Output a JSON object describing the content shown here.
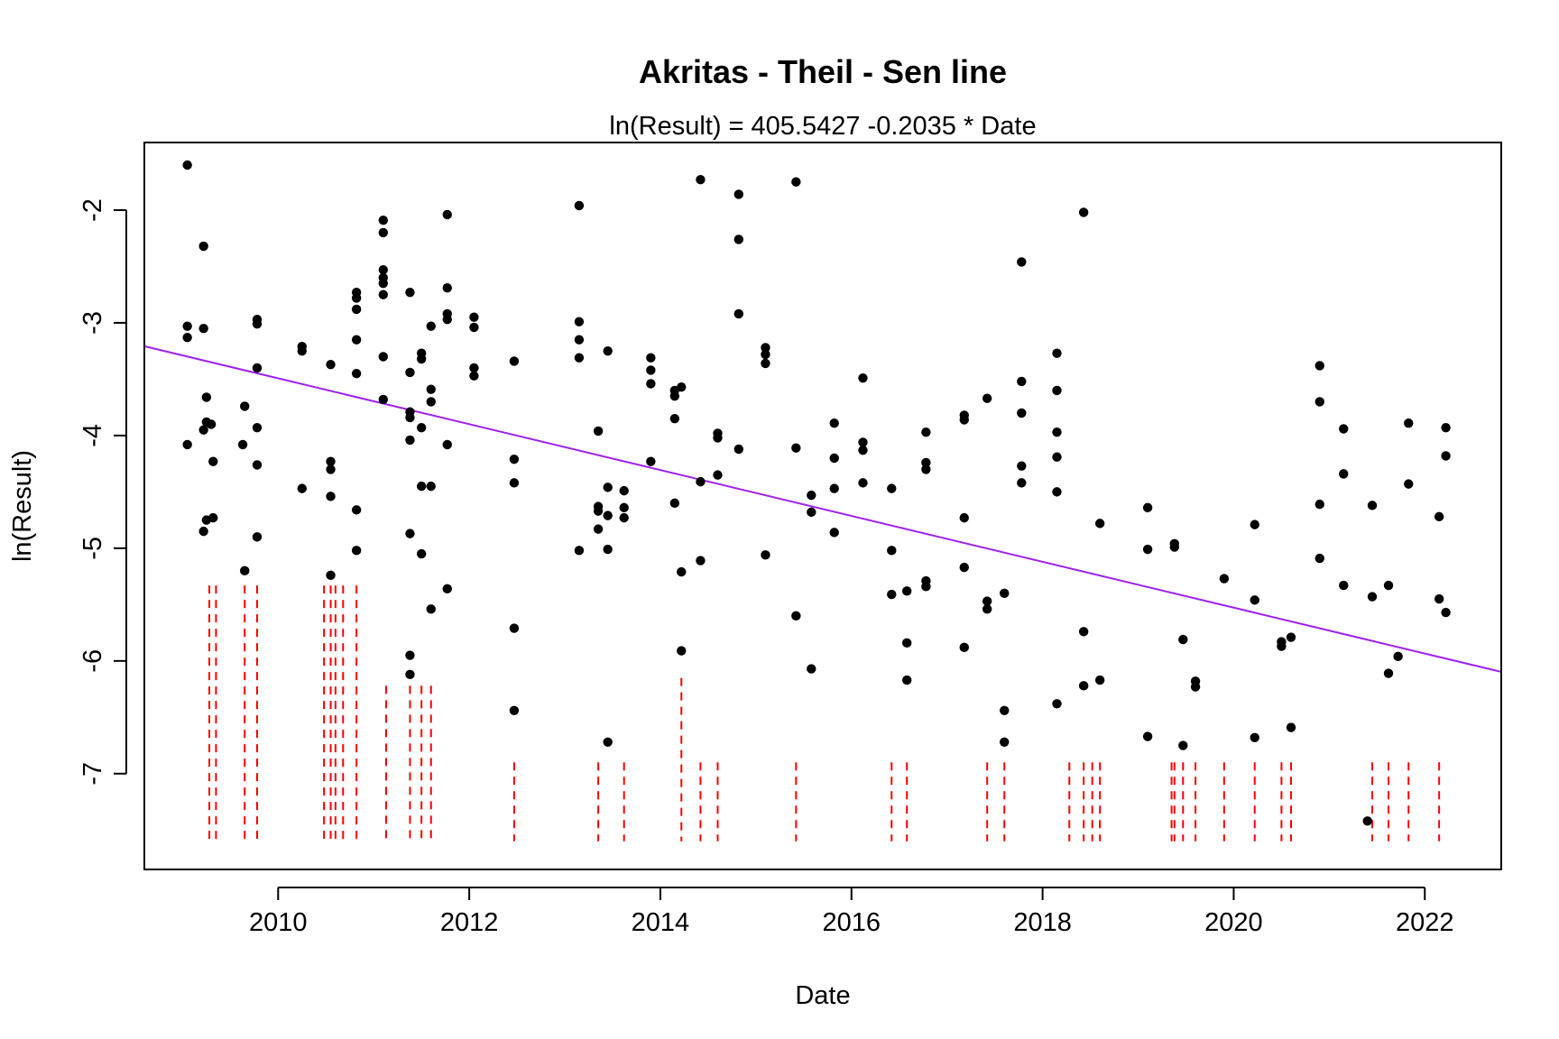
{
  "chart_data": {
    "type": "scatter",
    "title": "Akritas - Theil - Sen line",
    "subtitle": "ln(Result) = 405.5427 -0.2035 * Date",
    "xlabel": "Date",
    "ylabel": "ln(Result)",
    "xlim": [
      2008.6,
      2022.8
    ],
    "ylim": [
      -7.85,
      -1.4
    ],
    "x_ticks": [
      2010,
      2012,
      2014,
      2016,
      2018,
      2020,
      2022
    ],
    "y_ticks": [
      -2,
      -3,
      -4,
      -5,
      -6,
      -7
    ],
    "grid": false,
    "legend": "none",
    "trend_line": {
      "intercept": 405.5427,
      "slope": -0.2035,
      "color": "#a020f0"
    },
    "point_color": "#000000",
    "censored_color": "#ff0000",
    "series": [
      {
        "values": [
          {
            "x": 2009.05,
            "y": -1.6
          },
          {
            "x": 2009.05,
            "y": -3.03
          },
          {
            "x": 2009.05,
            "y": -3.13
          },
          {
            "x": 2009.05,
            "y": -4.08
          },
          {
            "x": 2009.22,
            "y": -2.32
          },
          {
            "x": 2009.22,
            "y": -3.05
          },
          {
            "x": 2009.25,
            "y": -3.66
          },
          {
            "x": 2009.22,
            "y": -3.95
          },
          {
            "x": 2009.25,
            "y": -3.88
          },
          {
            "x": 2009.3,
            "y": -3.9
          },
          {
            "x": 2009.32,
            "y": -4.23
          },
          {
            "x": 2009.22,
            "y": -4.85
          },
          {
            "x": 2009.25,
            "y": -4.75
          },
          {
            "x": 2009.32,
            "y": -4.73
          },
          {
            "x": 2009.65,
            "y": -3.74
          },
          {
            "x": 2009.63,
            "y": -4.08
          },
          {
            "x": 2009.65,
            "y": -5.2
          },
          {
            "x": 2009.78,
            "y": -2.97
          },
          {
            "x": 2009.78,
            "y": -3.01
          },
          {
            "x": 2009.78,
            "y": -3.4
          },
          {
            "x": 2009.78,
            "y": -3.93
          },
          {
            "x": 2009.78,
            "y": -4.26
          },
          {
            "x": 2009.78,
            "y": -4.9
          },
          {
            "x": 2010.25,
            "y": -3.21
          },
          {
            "x": 2010.25,
            "y": -3.25
          },
          {
            "x": 2010.25,
            "y": -4.47
          },
          {
            "x": 2010.55,
            "y": -3.37
          },
          {
            "x": 2010.55,
            "y": -4.23
          },
          {
            "x": 2010.55,
            "y": -4.3
          },
          {
            "x": 2010.55,
            "y": -4.54
          },
          {
            "x": 2010.55,
            "y": -5.24
          },
          {
            "x": 2010.82,
            "y": -2.73
          },
          {
            "x": 2010.82,
            "y": -2.78
          },
          {
            "x": 2010.82,
            "y": -2.88
          },
          {
            "x": 2010.82,
            "y": -3.15
          },
          {
            "x": 2010.82,
            "y": -3.45
          },
          {
            "x": 2010.82,
            "y": -4.66
          },
          {
            "x": 2010.82,
            "y": -5.02
          },
          {
            "x": 2011.1,
            "y": -2.09
          },
          {
            "x": 2011.1,
            "y": -2.2
          },
          {
            "x": 2011.1,
            "y": -2.53
          },
          {
            "x": 2011.1,
            "y": -2.6
          },
          {
            "x": 2011.1,
            "y": -2.65
          },
          {
            "x": 2011.1,
            "y": -2.75
          },
          {
            "x": 2011.1,
            "y": -3.3
          },
          {
            "x": 2011.1,
            "y": -3.68
          },
          {
            "x": 2011.38,
            "y": -2.73
          },
          {
            "x": 2011.38,
            "y": -3.44
          },
          {
            "x": 2011.38,
            "y": -3.79
          },
          {
            "x": 2011.38,
            "y": -3.84
          },
          {
            "x": 2011.38,
            "y": -4.04
          },
          {
            "x": 2011.38,
            "y": -4.87
          },
          {
            "x": 2011.38,
            "y": -5.95
          },
          {
            "x": 2011.38,
            "y": -6.12
          },
          {
            "x": 2011.5,
            "y": -3.27
          },
          {
            "x": 2011.5,
            "y": -3.32
          },
          {
            "x": 2011.5,
            "y": -3.93
          },
          {
            "x": 2011.5,
            "y": -4.45
          },
          {
            "x": 2011.5,
            "y": -5.05
          },
          {
            "x": 2011.6,
            "y": -3.03
          },
          {
            "x": 2011.6,
            "y": -3.59
          },
          {
            "x": 2011.6,
            "y": -3.7
          },
          {
            "x": 2011.6,
            "y": -4.45
          },
          {
            "x": 2011.6,
            "y": -5.54
          },
          {
            "x": 2011.77,
            "y": -2.04
          },
          {
            "x": 2011.77,
            "y": -2.69
          },
          {
            "x": 2011.77,
            "y": -2.92
          },
          {
            "x": 2011.77,
            "y": -2.97
          },
          {
            "x": 2011.77,
            "y": -4.08
          },
          {
            "x": 2011.77,
            "y": -5.36
          },
          {
            "x": 2012.05,
            "y": -2.95
          },
          {
            "x": 2012.05,
            "y": -3.04
          },
          {
            "x": 2012.05,
            "y": -3.4
          },
          {
            "x": 2012.05,
            "y": -3.47
          },
          {
            "x": 2012.47,
            "y": -3.34
          },
          {
            "x": 2012.47,
            "y": -4.21
          },
          {
            "x": 2012.47,
            "y": -4.42
          },
          {
            "x": 2012.47,
            "y": -5.71
          },
          {
            "x": 2012.47,
            "y": -6.44
          },
          {
            "x": 2013.15,
            "y": -1.96
          },
          {
            "x": 2013.15,
            "y": -2.99
          },
          {
            "x": 2013.15,
            "y": -3.15
          },
          {
            "x": 2013.15,
            "y": -3.31
          },
          {
            "x": 2013.15,
            "y": -5.02
          },
          {
            "x": 2013.35,
            "y": -3.96
          },
          {
            "x": 2013.35,
            "y": -4.63
          },
          {
            "x": 2013.35,
            "y": -4.67
          },
          {
            "x": 2013.35,
            "y": -4.83
          },
          {
            "x": 2013.45,
            "y": -3.25
          },
          {
            "x": 2013.45,
            "y": -4.46
          },
          {
            "x": 2013.45,
            "y": -4.71
          },
          {
            "x": 2013.45,
            "y": -5.01
          },
          {
            "x": 2013.45,
            "y": -6.72
          },
          {
            "x": 2013.62,
            "y": -4.49
          },
          {
            "x": 2013.62,
            "y": -4.64
          },
          {
            "x": 2013.62,
            "y": -4.73
          },
          {
            "x": 2013.9,
            "y": -3.31
          },
          {
            "x": 2013.9,
            "y": -3.42
          },
          {
            "x": 2013.9,
            "y": -3.54
          },
          {
            "x": 2013.9,
            "y": -4.23
          },
          {
            "x": 2014.15,
            "y": -3.6
          },
          {
            "x": 2014.15,
            "y": -3.65
          },
          {
            "x": 2014.15,
            "y": -3.85
          },
          {
            "x": 2014.15,
            "y": -4.6
          },
          {
            "x": 2014.22,
            "y": -3.57
          },
          {
            "x": 2014.22,
            "y": -5.21
          },
          {
            "x": 2014.22,
            "y": -5.91
          },
          {
            "x": 2014.42,
            "y": -1.73
          },
          {
            "x": 2014.42,
            "y": -4.41
          },
          {
            "x": 2014.42,
            "y": -5.11
          },
          {
            "x": 2014.6,
            "y": -3.98
          },
          {
            "x": 2014.6,
            "y": -4.02
          },
          {
            "x": 2014.6,
            "y": -4.35
          },
          {
            "x": 2014.82,
            "y": -1.86
          },
          {
            "x": 2014.82,
            "y": -2.26
          },
          {
            "x": 2014.82,
            "y": -2.92
          },
          {
            "x": 2014.82,
            "y": -4.12
          },
          {
            "x": 2015.1,
            "y": -3.22
          },
          {
            "x": 2015.1,
            "y": -3.28
          },
          {
            "x": 2015.1,
            "y": -3.36
          },
          {
            "x": 2015.1,
            "y": -5.06
          },
          {
            "x": 2015.42,
            "y": -1.75
          },
          {
            "x": 2015.42,
            "y": -4.11
          },
          {
            "x": 2015.42,
            "y": -5.6
          },
          {
            "x": 2015.58,
            "y": -4.53
          },
          {
            "x": 2015.58,
            "y": -4.68
          },
          {
            "x": 2015.58,
            "y": -6.07
          },
          {
            "x": 2015.82,
            "y": -3.89
          },
          {
            "x": 2015.82,
            "y": -4.2
          },
          {
            "x": 2015.82,
            "y": -4.47
          },
          {
            "x": 2015.82,
            "y": -4.86
          },
          {
            "x": 2016.12,
            "y": -3.49
          },
          {
            "x": 2016.12,
            "y": -4.06
          },
          {
            "x": 2016.12,
            "y": -4.13
          },
          {
            "x": 2016.12,
            "y": -4.42
          },
          {
            "x": 2016.42,
            "y": -4.47
          },
          {
            "x": 2016.42,
            "y": -5.02
          },
          {
            "x": 2016.42,
            "y": -5.41
          },
          {
            "x": 2016.58,
            "y": -5.38
          },
          {
            "x": 2016.58,
            "y": -5.84
          },
          {
            "x": 2016.58,
            "y": -6.17
          },
          {
            "x": 2016.78,
            "y": -3.97
          },
          {
            "x": 2016.78,
            "y": -4.24
          },
          {
            "x": 2016.78,
            "y": -4.3
          },
          {
            "x": 2016.78,
            "y": -5.29
          },
          {
            "x": 2016.78,
            "y": -5.34
          },
          {
            "x": 2017.18,
            "y": -3.82
          },
          {
            "x": 2017.18,
            "y": -3.86
          },
          {
            "x": 2017.18,
            "y": -4.73
          },
          {
            "x": 2017.18,
            "y": -5.17
          },
          {
            "x": 2017.18,
            "y": -5.88
          },
          {
            "x": 2017.42,
            "y": -3.67
          },
          {
            "x": 2017.42,
            "y": -5.47
          },
          {
            "x": 2017.42,
            "y": -5.54
          },
          {
            "x": 2017.6,
            "y": -5.4
          },
          {
            "x": 2017.6,
            "y": -6.44
          },
          {
            "x": 2017.6,
            "y": -6.72
          },
          {
            "x": 2017.78,
            "y": -2.46
          },
          {
            "x": 2017.78,
            "y": -3.52
          },
          {
            "x": 2017.78,
            "y": -3.8
          },
          {
            "x": 2017.78,
            "y": -4.27
          },
          {
            "x": 2017.78,
            "y": -4.42
          },
          {
            "x": 2018.15,
            "y": -3.27
          },
          {
            "x": 2018.15,
            "y": -3.6
          },
          {
            "x": 2018.15,
            "y": -3.97
          },
          {
            "x": 2018.15,
            "y": -4.19
          },
          {
            "x": 2018.15,
            "y": -4.5
          },
          {
            "x": 2018.15,
            "y": -6.38
          },
          {
            "x": 2018.43,
            "y": -2.02
          },
          {
            "x": 2018.43,
            "y": -5.74
          },
          {
            "x": 2018.43,
            "y": -6.22
          },
          {
            "x": 2018.6,
            "y": -4.78
          },
          {
            "x": 2018.6,
            "y": -6.17
          },
          {
            "x": 2019.1,
            "y": -4.64
          },
          {
            "x": 2019.1,
            "y": -5.01
          },
          {
            "x": 2019.1,
            "y": -6.67
          },
          {
            "x": 2019.38,
            "y": -4.96
          },
          {
            "x": 2019.38,
            "y": -4.99
          },
          {
            "x": 2019.47,
            "y": -5.81
          },
          {
            "x": 2019.47,
            "y": -6.75
          },
          {
            "x": 2019.6,
            "y": -6.18
          },
          {
            "x": 2019.6,
            "y": -6.23
          },
          {
            "x": 2019.9,
            "y": -5.27
          },
          {
            "x": 2020.22,
            "y": -4.79
          },
          {
            "x": 2020.22,
            "y": -5.46
          },
          {
            "x": 2020.22,
            "y": -6.68
          },
          {
            "x": 2020.5,
            "y": -5.83
          },
          {
            "x": 2020.5,
            "y": -5.87
          },
          {
            "x": 2020.6,
            "y": -5.79
          },
          {
            "x": 2020.6,
            "y": -6.59
          },
          {
            "x": 2020.9,
            "y": -3.38
          },
          {
            "x": 2020.9,
            "y": -3.7
          },
          {
            "x": 2020.9,
            "y": -4.61
          },
          {
            "x": 2020.9,
            "y": -5.09
          },
          {
            "x": 2021.15,
            "y": -3.94
          },
          {
            "x": 2021.15,
            "y": -4.34
          },
          {
            "x": 2021.15,
            "y": -5.33
          },
          {
            "x": 2021.4,
            "y": -7.42
          },
          {
            "x": 2021.45,
            "y": -4.62
          },
          {
            "x": 2021.45,
            "y": -5.43
          },
          {
            "x": 2021.62,
            "y": -5.33
          },
          {
            "x": 2021.62,
            "y": -6.11
          },
          {
            "x": 2021.72,
            "y": -5.96
          },
          {
            "x": 2021.83,
            "y": -3.89
          },
          {
            "x": 2021.83,
            "y": -4.43
          },
          {
            "x": 2022.15,
            "y": -4.72
          },
          {
            "x": 2022.15,
            "y": -5.45
          },
          {
            "x": 2022.22,
            "y": -3.93
          },
          {
            "x": 2022.22,
            "y": -4.18
          },
          {
            "x": 2022.22,
            "y": -5.57
          }
        ]
      }
    ],
    "censored_segments": [
      {
        "x": 2009.28,
        "y_top": -5.33,
        "y_bottom": -7.6
      },
      {
        "x": 2009.35,
        "y_top": -5.33,
        "y_bottom": -7.6
      },
      {
        "x": 2009.65,
        "y_top": -5.33,
        "y_bottom": -7.6
      },
      {
        "x": 2009.78,
        "y_top": -5.33,
        "y_bottom": -7.6
      },
      {
        "x": 2010.48,
        "y_top": -5.33,
        "y_bottom": -7.6
      },
      {
        "x": 2010.55,
        "y_top": -5.33,
        "y_bottom": -7.6
      },
      {
        "x": 2010.6,
        "y_top": -5.33,
        "y_bottom": -7.6
      },
      {
        "x": 2010.68,
        "y_top": -5.33,
        "y_bottom": -7.6
      },
      {
        "x": 2010.82,
        "y_top": -5.33,
        "y_bottom": -7.6
      },
      {
        "x": 2011.13,
        "y_top": -6.22,
        "y_bottom": -7.6
      },
      {
        "x": 2011.38,
        "y_top": -6.22,
        "y_bottom": -7.6
      },
      {
        "x": 2011.5,
        "y_top": -6.22,
        "y_bottom": -7.6
      },
      {
        "x": 2011.6,
        "y_top": -6.22,
        "y_bottom": -7.6
      },
      {
        "x": 2012.47,
        "y_top": -6.9,
        "y_bottom": -7.6
      },
      {
        "x": 2013.35,
        "y_top": -6.9,
        "y_bottom": -7.6
      },
      {
        "x": 2013.62,
        "y_top": -6.9,
        "y_bottom": -7.6
      },
      {
        "x": 2014.22,
        "y_top": -6.15,
        "y_bottom": -7.6
      },
      {
        "x": 2014.42,
        "y_top": -6.9,
        "y_bottom": -7.6
      },
      {
        "x": 2014.6,
        "y_top": -6.9,
        "y_bottom": -7.6
      },
      {
        "x": 2015.42,
        "y_top": -6.9,
        "y_bottom": -7.6
      },
      {
        "x": 2016.42,
        "y_top": -6.9,
        "y_bottom": -7.6
      },
      {
        "x": 2016.58,
        "y_top": -6.9,
        "y_bottom": -7.6
      },
      {
        "x": 2017.42,
        "y_top": -6.9,
        "y_bottom": -7.6
      },
      {
        "x": 2017.6,
        "y_top": -6.9,
        "y_bottom": -7.6
      },
      {
        "x": 2018.28,
        "y_top": -6.9,
        "y_bottom": -7.6
      },
      {
        "x": 2018.43,
        "y_top": -6.9,
        "y_bottom": -7.6
      },
      {
        "x": 2018.52,
        "y_top": -6.9,
        "y_bottom": -7.6
      },
      {
        "x": 2018.6,
        "y_top": -6.9,
        "y_bottom": -7.6
      },
      {
        "x": 2019.35,
        "y_top": -6.9,
        "y_bottom": -7.6
      },
      {
        "x": 2019.38,
        "y_top": -6.9,
        "y_bottom": -7.6
      },
      {
        "x": 2019.47,
        "y_top": -6.9,
        "y_bottom": -7.6
      },
      {
        "x": 2019.6,
        "y_top": -6.9,
        "y_bottom": -7.6
      },
      {
        "x": 2019.9,
        "y_top": -6.9,
        "y_bottom": -7.6
      },
      {
        "x": 2020.22,
        "y_top": -6.9,
        "y_bottom": -7.6
      },
      {
        "x": 2020.5,
        "y_top": -6.9,
        "y_bottom": -7.6
      },
      {
        "x": 2020.6,
        "y_top": -6.9,
        "y_bottom": -7.6
      },
      {
        "x": 2021.45,
        "y_top": -6.9,
        "y_bottom": -7.6
      },
      {
        "x": 2021.62,
        "y_top": -6.9,
        "y_bottom": -7.6
      },
      {
        "x": 2021.83,
        "y_top": -6.9,
        "y_bottom": -7.6
      },
      {
        "x": 2022.15,
        "y_top": -6.9,
        "y_bottom": -7.6
      }
    ]
  }
}
